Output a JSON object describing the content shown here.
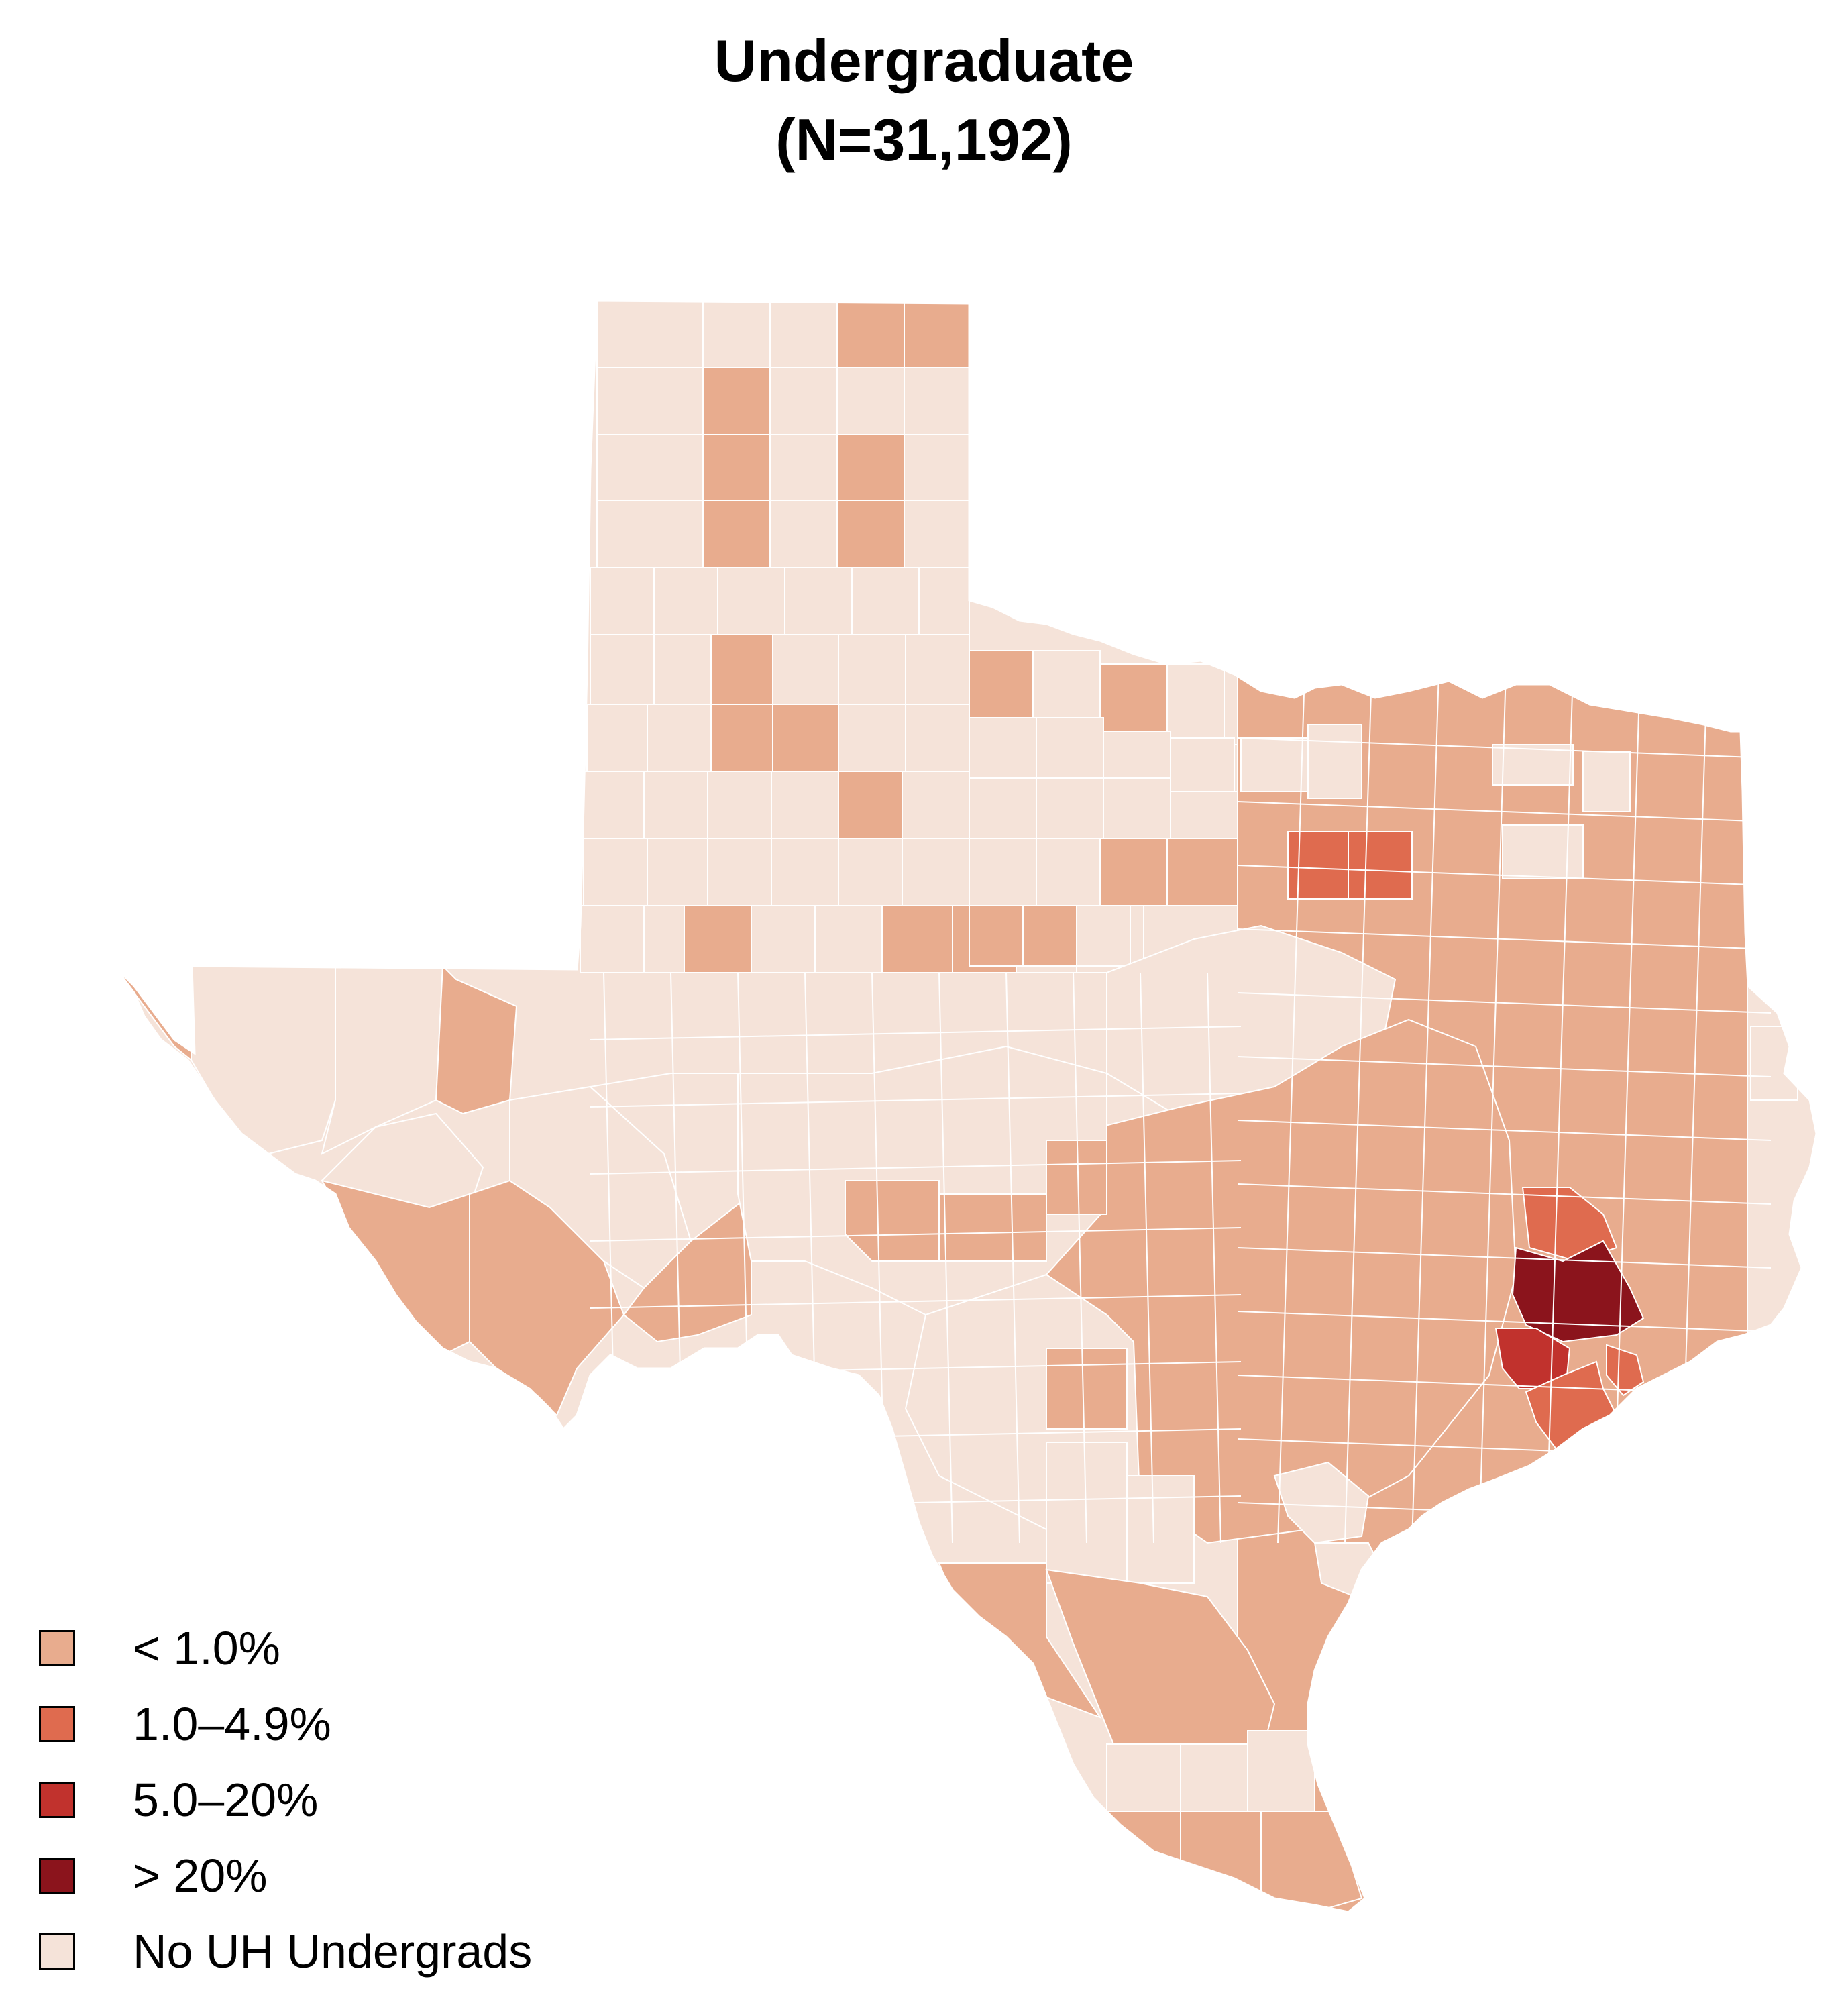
{
  "title": {
    "line1": "Undergraduate",
    "line2": "(N=31,192)"
  },
  "legend": {
    "items": [
      {
        "label": "< 1.0%",
        "color": "#e8ac8e"
      },
      {
        "label": "1.0–4.9%",
        "color": "#df6b4f"
      },
      {
        "label": "5.0–20%",
        "color": "#c1322d"
      },
      {
        "label": "> 20%",
        "color": "#8b141c"
      },
      {
        "label": "No UH Undergrads",
        "color": "#f5e3d9"
      }
    ]
  },
  "map": {
    "region": "Texas",
    "border_color": "#ffffff",
    "regions": [
      {
        "name": "Harris",
        "category": "> 20%"
      },
      {
        "name": "Fort Bend",
        "category": "5.0–20%"
      },
      {
        "name": "Brazoria",
        "category": "1.0–4.9%"
      },
      {
        "name": "Galveston",
        "category": "1.0–4.9%"
      },
      {
        "name": "Montgomery",
        "category": "1.0–4.9%"
      },
      {
        "name": "Dallas",
        "category": "1.0–4.9%"
      },
      {
        "name": "Tarrant",
        "category": "1.0–4.9%"
      }
    ]
  }
}
